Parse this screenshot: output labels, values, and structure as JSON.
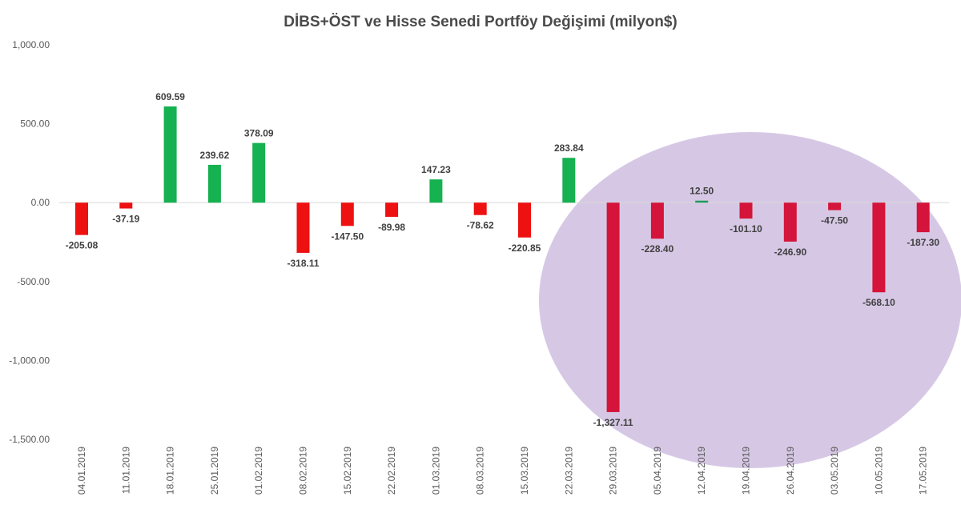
{
  "chart_data": {
    "type": "bar",
    "title": "DİBS+ÖST ve Hisse Senedi Portföy Değişimi (milyon$)",
    "xlabel": "",
    "ylabel": "",
    "ylim": [
      -1500,
      1000
    ],
    "yticks": [
      1000,
      500,
      0,
      -500,
      -1000,
      -1500
    ],
    "ytick_labels": [
      "1,000.00",
      "500.00",
      "0.00",
      "-500.00",
      "-1,000.00",
      "-1,500.00"
    ],
    "categories": [
      "04.01.2019",
      "11.01.2019",
      "18.01.2019",
      "25.01.2019",
      "01.02.2019",
      "08.02.2019",
      "15.02.2019",
      "22.02.2019",
      "01.03.2019",
      "08.03.2019",
      "15.03.2019",
      "22.03.2019",
      "29.03.2019",
      "05.04.2019",
      "12.04.2019",
      "19.04.2019",
      "26.04.2019",
      "03.05.2019",
      "10.05.2019",
      "17.05.2019"
    ],
    "values": [
      -205.08,
      -37.19,
      609.59,
      239.62,
      378.09,
      -318.11,
      -147.5,
      -89.98,
      147.23,
      -78.62,
      -220.85,
      283.84,
      -1327.11,
      -228.4,
      12.5,
      -101.1,
      -246.9,
      -47.5,
      -568.1,
      -187.3
    ],
    "value_labels": [
      "-205.08",
      "-37.19",
      "609.59",
      "239.62",
      "378.09",
      "-318.11",
      "-147.50",
      "-89.98",
      "147.23",
      "-78.62",
      "-220.85",
      "283.84",
      "-1,327.11",
      "-228.40",
      "12.50",
      "-101.10",
      "-246.90",
      "-47.50",
      "-568.10",
      "-187.30"
    ],
    "grid": false,
    "legend": "none",
    "colors": {
      "positive": "#16b150",
      "negative": "#ee1111",
      "negative_highlight": "#d4143a",
      "positive_highlight": "#1a9a5c",
      "highlight_ellipse": "#c8b6dc",
      "axis": "#d9d9d9"
    },
    "highlight_from_index": 12
  }
}
